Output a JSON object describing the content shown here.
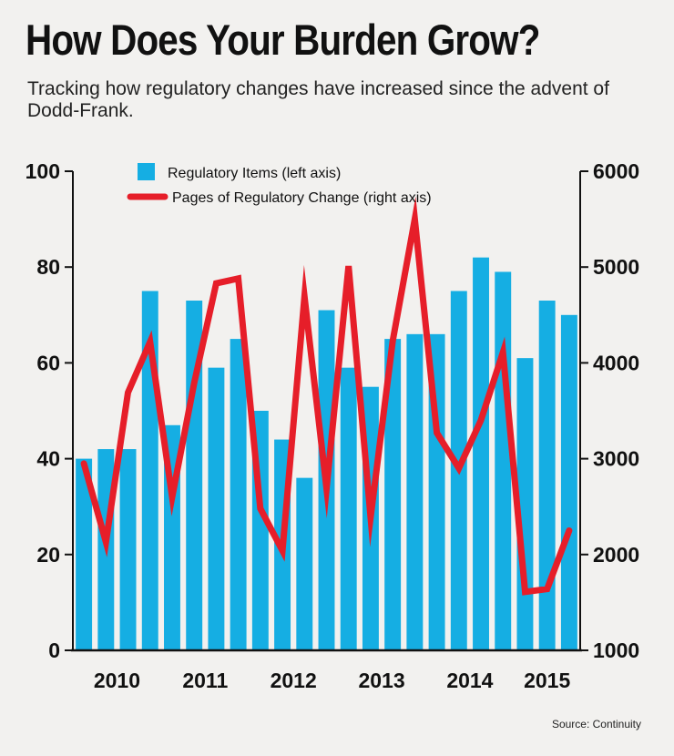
{
  "title": "How Does Your Burden Grow?",
  "subtitle": "Tracking how regulatory changes have increased since the advent of Dodd-Frank.",
  "source": "Source: Continuity",
  "colors": {
    "bars": "#15aee3",
    "line": "#e61e29",
    "background": "#f2f1ef"
  },
  "chart_data": {
    "type": "bar",
    "title": "How Does Your Burden Grow?",
    "x_tick_labels": [
      "2010",
      "2011",
      "2012",
      "2013",
      "2014",
      "2015"
    ],
    "left_axis": {
      "ylim": [
        0,
        100
      ],
      "ticks": [
        "0",
        "20",
        "40",
        "60",
        "80",
        "100"
      ]
    },
    "right_axis": {
      "ylim": [
        1000,
        6000
      ],
      "ticks": [
        "1000",
        "2000",
        "3000",
        "4000",
        "5000",
        "6000"
      ]
    },
    "series": [
      {
        "name": "Regulatory Items (left axis)",
        "type": "bar",
        "axis": "left",
        "values": [
          40,
          42,
          42,
          75,
          47,
          73,
          59,
          65,
          50,
          44,
          36,
          71,
          59,
          55,
          65,
          66,
          66,
          75,
          82,
          79,
          61,
          73,
          70
        ]
      },
      {
        "name": "Pages of Regulatory Change (right axis)",
        "type": "line",
        "axis": "right",
        "values": [
          2950,
          2130,
          3690,
          4220,
          2600,
          3790,
          4830,
          4880,
          2480,
          2040,
          4690,
          2690,
          5010,
          2390,
          4230,
          5500,
          3270,
          2900,
          3400,
          4110,
          1610,
          1640,
          2250
        ]
      }
    ]
  }
}
